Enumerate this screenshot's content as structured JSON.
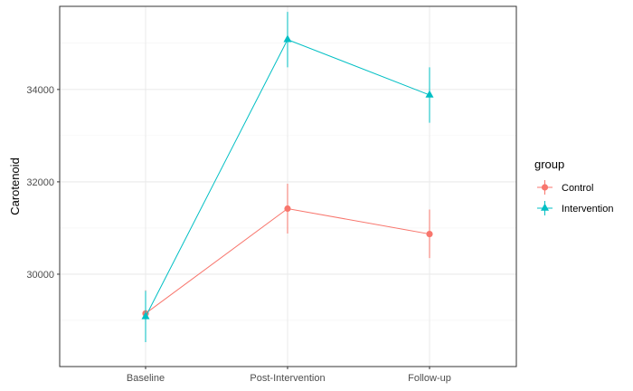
{
  "chart_data": {
    "type": "line",
    "xlabel": "",
    "ylabel": "Carotenoid",
    "categories": [
      "Baseline",
      "Post-Intervention",
      "Follow-up"
    ],
    "yticks": [
      30000,
      32000,
      34000
    ],
    "ylim": [
      28000,
      35800
    ],
    "grid": true,
    "legend": {
      "title": "group",
      "position": "right"
    },
    "series": [
      {
        "name": "Control",
        "color": "#F8766D",
        "marker": "circle",
        "values": [
          29150,
          31420,
          30870
        ],
        "error_low": [
          28650,
          30880,
          30350
        ],
        "error_high": [
          29650,
          31960,
          31400
        ]
      },
      {
        "name": "Intervention",
        "color": "#00BFC4",
        "marker": "triangle",
        "values": [
          29080,
          35080,
          33880
        ],
        "error_low": [
          28530,
          34480,
          33280
        ],
        "error_high": [
          29640,
          35680,
          34480
        ]
      }
    ]
  }
}
